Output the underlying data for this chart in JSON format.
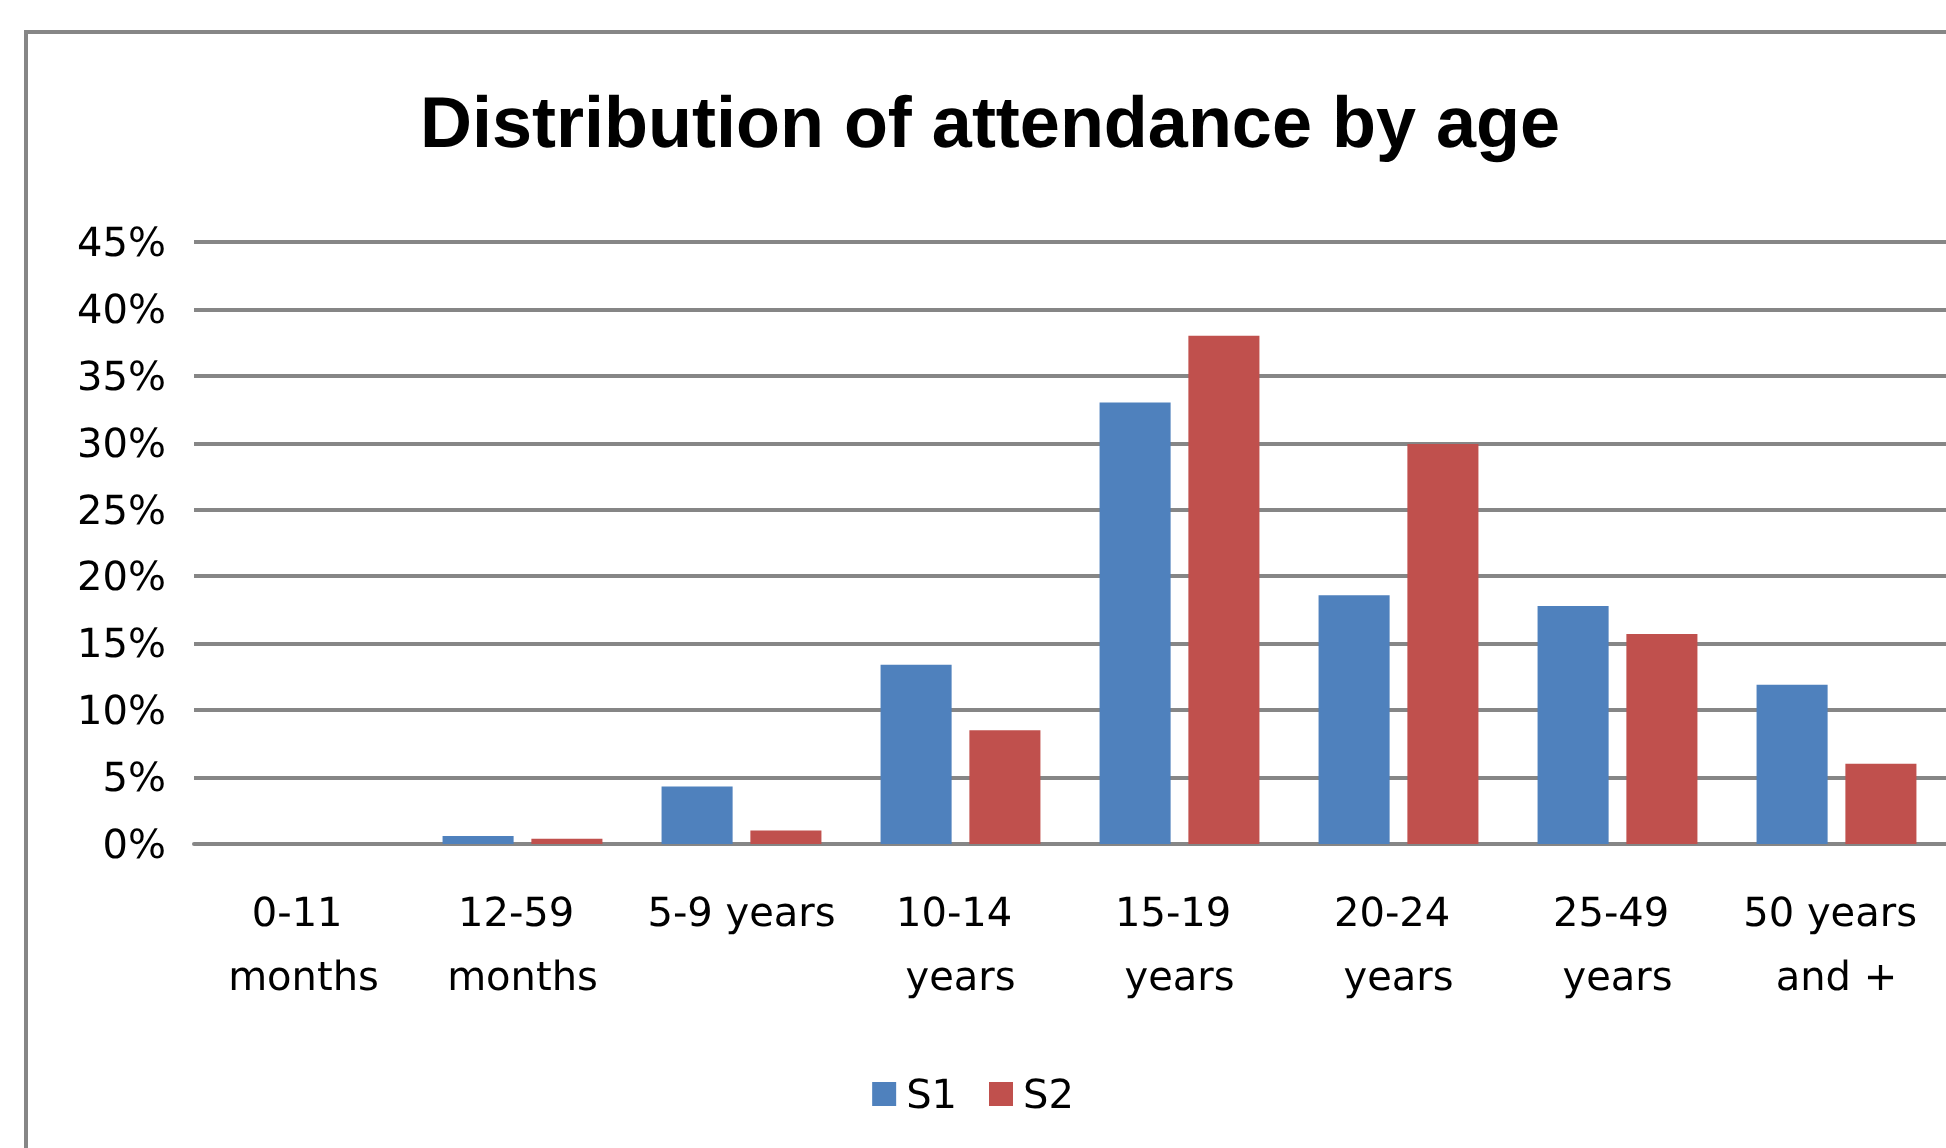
{
  "chart_data": {
    "type": "bar",
    "title": "Distribution of attendance by age",
    "categories": [
      "0-11 months",
      "12-59 months",
      "5-9 years",
      "10-14 years",
      "15-19 years",
      "20-24 years",
      "25-49 years",
      "50 years and +"
    ],
    "series": [
      {
        "name": "S1",
        "color": "#4f81bd",
        "values": [
          0,
          0.6,
          4.3,
          13.4,
          33.0,
          18.6,
          17.8,
          11.9
        ]
      },
      {
        "name": "S2",
        "color": "#c0504d",
        "values": [
          0,
          0.4,
          1.0,
          8.5,
          38.0,
          29.9,
          15.7,
          6.0
        ]
      }
    ],
    "ylim": [
      0,
      45
    ],
    "yticks": [
      {
        "value": 0,
        "label": "0%"
      },
      {
        "value": 5,
        "label": "5%"
      },
      {
        "value": 10,
        "label": "10%"
      },
      {
        "value": 15,
        "label": "15%"
      },
      {
        "value": 20,
        "label": "20%"
      },
      {
        "value": 25,
        "label": "25%"
      },
      {
        "value": 30,
        "label": "30%"
      },
      {
        "value": 35,
        "label": "35%"
      },
      {
        "value": 40,
        "label": "40%"
      },
      {
        "value": 45,
        "label": "45%"
      }
    ],
    "grid": "y",
    "legend": "bottom"
  }
}
